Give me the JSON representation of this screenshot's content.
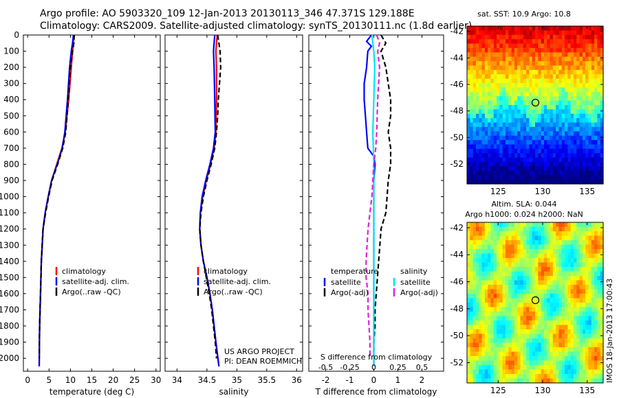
{
  "title": {
    "line1": "Argo profile: AO 5903320_109 12-Jan-2013 20130113_346 47.371S 129.188E",
    "line2": "Climatology: CARS2009. Satellite-adjusted climatology: synTS_20130111.nc (1.8d earlier)"
  },
  "colors": {
    "climatology": "#ff0000",
    "satellite": "#0000ff",
    "argo": "#000000",
    "salinity_satellite": "#00e5ee",
    "salinity_argo": "#dd22dd"
  },
  "chart_data": [
    {
      "type": "line",
      "panel": "temperature",
      "xlabel": "temperature (deg C)",
      "xlim": [
        -1,
        31
      ],
      "xticks": [
        0,
        5,
        10,
        15,
        20,
        25,
        30
      ],
      "ylim": [
        0,
        2080
      ],
      "yticks": [
        0,
        100,
        200,
        300,
        400,
        500,
        600,
        700,
        800,
        900,
        1000,
        1100,
        1200,
        1300,
        1400,
        1500,
        1600,
        1700,
        1800,
        1900,
        2000
      ],
      "y_reversed": true,
      "legend": [
        "climatology",
        "satellite-adj. clim.",
        "Argo(..raw -QC)"
      ],
      "series": [
        {
          "name": "climatology",
          "depth": [
            0,
            50,
            100,
            200,
            400,
            600,
            700,
            800,
            900,
            1000,
            1100,
            1200,
            1400,
            1600,
            1800,
            2050
          ],
          "values": [
            10.8,
            10.7,
            10.5,
            10.2,
            9.6,
            8.8,
            8.0,
            6.8,
            5.6,
            4.8,
            4.1,
            3.6,
            3.2,
            3.0,
            2.8,
            2.7
          ]
        },
        {
          "name": "satellite-adj. clim.",
          "depth": [
            0,
            50,
            100,
            200,
            400,
            600,
            700,
            800,
            900,
            1000,
            1100,
            1200,
            1400,
            1600,
            1800,
            2050
          ],
          "values": [
            10.7,
            10.5,
            10.2,
            9.8,
            9.3,
            8.7,
            8.1,
            6.9,
            5.6,
            4.8,
            4.1,
            3.6,
            3.2,
            3.0,
            2.8,
            2.7
          ]
        },
        {
          "name": "Argo(..raw -QC)",
          "depth": [
            0,
            50,
            100,
            200,
            400,
            600,
            700,
            800,
            900,
            1000,
            1100,
            1200,
            1400,
            1600,
            1800,
            2000
          ],
          "values": [
            10.9,
            10.8,
            10.5,
            10.0,
            9.5,
            8.9,
            8.2,
            7.0,
            5.7,
            4.9,
            4.2,
            3.6,
            3.2,
            3.0,
            2.8,
            2.7
          ]
        }
      ]
    },
    {
      "type": "line",
      "panel": "salinity",
      "xlabel": "salinity",
      "xlim": [
        33.8,
        36.1
      ],
      "xticks": [
        34,
        34.5,
        35,
        35.5,
        36
      ],
      "ylim": [
        0,
        2080
      ],
      "y_reversed": true,
      "legend": [
        "climatology",
        "satellite-adj. clim.",
        "Argo(..raw -QC)"
      ],
      "annotation": [
        "US ARGO PROJECT",
        "PI: DEAN ROEMMICH"
      ],
      "series": [
        {
          "name": "climatology",
          "depth": [
            0,
            100,
            200,
            400,
            600,
            700,
            800,
            900,
            1000,
            1100,
            1200,
            1300,
            1400,
            1500,
            1600,
            1700,
            1800,
            1900,
            2050
          ],
          "values": [
            34.67,
            34.65,
            34.66,
            34.66,
            34.65,
            34.62,
            34.56,
            34.49,
            34.43,
            34.39,
            34.38,
            34.4,
            34.44,
            34.5,
            34.55,
            34.59,
            34.62,
            34.65,
            34.7
          ]
        },
        {
          "name": "satellite-adj. clim.",
          "depth": [
            0,
            100,
            200,
            400,
            600,
            700,
            800,
            900,
            1000,
            1100,
            1200,
            1300,
            1400,
            1500,
            1600,
            1700,
            1800,
            1900,
            2050
          ],
          "values": [
            34.63,
            34.61,
            34.62,
            34.63,
            34.64,
            34.61,
            34.55,
            34.48,
            34.42,
            34.39,
            34.38,
            34.4,
            34.44,
            34.5,
            34.55,
            34.59,
            34.62,
            34.65,
            34.7
          ]
        },
        {
          "name": "Argo(..raw -QC)",
          "depth": [
            0,
            50,
            100,
            200,
            300,
            400,
            500,
            600,
            700,
            800,
            900,
            1000,
            1100,
            1200,
            1300,
            1400,
            1500,
            1600,
            1700,
            1800,
            1900,
            2000
          ],
          "values": [
            34.68,
            34.7,
            34.72,
            34.73,
            34.71,
            34.69,
            34.68,
            34.66,
            34.63,
            34.57,
            34.5,
            34.44,
            34.4,
            34.38,
            34.4,
            34.44,
            34.49,
            34.54,
            34.58,
            34.61,
            34.64,
            34.66
          ]
        }
      ]
    },
    {
      "type": "line",
      "panel": "difference",
      "xlabel": "T difference from climatology",
      "xlim": [
        -2.7,
        2.9
      ],
      "xticks": [
        -2,
        -1,
        0,
        1,
        2
      ],
      "top_label": "S difference from climatology",
      "top_ticks": [
        "-0.5",
        "-0.25",
        "0",
        "0.25",
        "0.5"
      ],
      "ylim": [
        0,
        2080
      ],
      "y_reversed": true,
      "legend_titles": [
        "temperature",
        "salinity"
      ],
      "legend": [
        "satellite",
        "Argo(-adj)",
        "satellite",
        "Argo(-adj)"
      ],
      "series": [
        {
          "name": "temperature satellite",
          "depth": [
            0,
            40,
            70,
            90,
            100,
            200,
            300,
            400,
            500,
            600,
            700,
            750,
            800,
            900,
            1000,
            1200,
            1500,
            1800,
            2050
          ],
          "values": [
            -0.1,
            -0.3,
            -0.1,
            -0.2,
            -0.25,
            -0.3,
            -0.4,
            -0.4,
            -0.35,
            -0.3,
            -0.25,
            0,
            0.05,
            0,
            0,
            0,
            0,
            0,
            0
          ]
        },
        {
          "name": "temperature Argo(-adj)",
          "depth": [
            0,
            50,
            100,
            200,
            300,
            400,
            500,
            600,
            700,
            800,
            900,
            1000,
            1100,
            1200,
            1300,
            1400,
            1500,
            1600,
            1700,
            1800,
            1900,
            2000
          ],
          "values": [
            0.3,
            0.5,
            0.3,
            0.5,
            0.6,
            0.7,
            0.7,
            0.6,
            0.7,
            0.7,
            0.6,
            0.55,
            0.5,
            0.3,
            0.25,
            0.2,
            0.15,
            0.1,
            0.05,
            0.05,
            0.0,
            0.0
          ]
        },
        {
          "name": "salinity satellite",
          "depth": [
            0,
            100,
            200,
            400,
            600,
            800,
            1000,
            1200,
            1500,
            1800,
            2050
          ],
          "values": [
            -0.02,
            0.0,
            0.01,
            0.0,
            -0.01,
            0.0,
            0.0,
            0.0,
            0.0,
            0.0,
            0.0
          ]
        },
        {
          "name": "salinity Argo(-adj)",
          "depth": [
            0,
            50,
            100,
            200,
            400,
            600,
            700,
            800,
            900,
            1000,
            1100,
            1200,
            1300,
            1400,
            1500,
            1600,
            1700,
            1800,
            1900,
            2000
          ],
          "values": [
            0.03,
            0.06,
            0.04,
            0.06,
            0.04,
            0.03,
            0.02,
            0.0,
            -0.01,
            -0.02,
            -0.04,
            -0.06,
            -0.07,
            -0.08,
            -0.08,
            -0.06,
            -0.06,
            -0.05,
            -0.04,
            -0.04
          ]
        }
      ]
    },
    {
      "type": "heatmap",
      "panel": "sst_map",
      "title": "sat. SST: 10.9 Argo: 10.8",
      "xlim": [
        121.5,
        136.8
      ],
      "ylim": [
        -53.5,
        -41.6
      ],
      "xticks": [
        125,
        130,
        135
      ],
      "yticks": [
        -42,
        -44,
        -46,
        -48,
        -50,
        -52
      ],
      "marker": {
        "lon": 129.188,
        "lat": -47.371
      }
    },
    {
      "type": "heatmap",
      "panel": "sla_map",
      "title_line1": "Altim. SLA: 0.044",
      "title_line2": "Argo h1000: 0.024 h2000: NaN",
      "xlim": [
        121.5,
        136.8
      ],
      "ylim": [
        -53.5,
        -41.6
      ],
      "xticks": [
        125,
        130,
        135
      ],
      "yticks": [
        -42,
        -44,
        -46,
        -48,
        -50,
        -52
      ],
      "marker": {
        "lon": 129.188,
        "lat": -47.371
      }
    }
  ],
  "stamp": "IMOS 18-Jan-2013 17:00:43"
}
